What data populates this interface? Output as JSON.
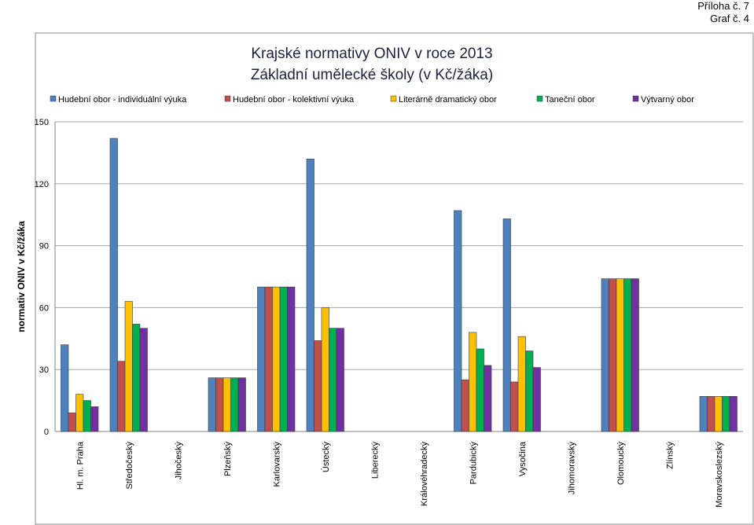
{
  "annex": "Příloha č. 7",
  "graph_no": "Graf č. 4",
  "chart_data": {
    "type": "bar",
    "title": "Krajské normativy ONIV v roce 2013",
    "subtitle": "Základní umělecké školy (v Kč/žáka)",
    "ylabel": "normativ ONIV v Kč/žáka",
    "xlabel": "",
    "ylim": [
      0,
      150
    ],
    "yticks": [
      0,
      30,
      60,
      90,
      120,
      150
    ],
    "grid": true,
    "legend_position": "top",
    "categories": [
      "Hl. m. Praha",
      "Středočeský",
      "Jihočeský",
      "Plzeňský",
      "Karlovarský",
      "Ústecký",
      "Liberecký",
      "Královéhradecký",
      "Pardubický",
      "Vysočina",
      "Jihomoravský",
      "Olomoucký",
      "Zlínský",
      "Moravskoslezský"
    ],
    "series": [
      {
        "name": "Hudební obor - individuální výuka",
        "color": "#4F81BD",
        "values": [
          42,
          142,
          0,
          26,
          70,
          132,
          0,
          0,
          107,
          103,
          0,
          74,
          0,
          17
        ]
      },
      {
        "name": "Hudební obor - kolektivní výuka",
        "color": "#C0504D",
        "values": [
          9,
          34,
          0,
          26,
          70,
          44,
          0,
          0,
          25,
          24,
          0,
          74,
          0,
          17
        ]
      },
      {
        "name": "Literárně dramatický obor",
        "color": "#FFC000",
        "values": [
          18,
          63,
          0,
          26,
          70,
          60,
          0,
          0,
          48,
          46,
          0,
          74,
          0,
          17
        ]
      },
      {
        "name": "Taneční obor",
        "color": "#00B050",
        "values": [
          15,
          52,
          0,
          26,
          70,
          50,
          0,
          0,
          40,
          39,
          0,
          74,
          0,
          17
        ]
      },
      {
        "name": "Výtvarný obor",
        "color": "#7030A0",
        "values": [
          12,
          50,
          0,
          26,
          70,
          50,
          0,
          0,
          32,
          31,
          0,
          74,
          0,
          17
        ]
      }
    ]
  }
}
